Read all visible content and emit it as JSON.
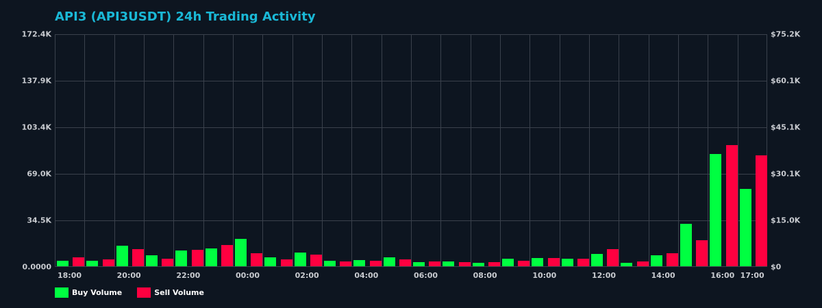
{
  "title": "API3 (API3USDT) 24h Trading Activity",
  "colors": {
    "background": "#0d1520",
    "title": "#1ab8d6",
    "grid": "#3a414c",
    "buy": "#00ff41",
    "sell": "#ff0040",
    "tick_text": "#c8cbd0"
  },
  "axes": {
    "left_ticks": [
      "172.4K",
      "137.9K",
      "103.4K",
      "69.0K",
      "34.5K",
      "0.0000"
    ],
    "right_ticks": [
      "$75.2K",
      "$60.1K",
      "$45.1K",
      "$30.1K",
      "$15.0K",
      "$0"
    ],
    "x_ticks": [
      {
        "label": "18:00",
        "index": 0
      },
      {
        "label": "20:00",
        "index": 2
      },
      {
        "label": "22:00",
        "index": 4
      },
      {
        "label": "00:00",
        "index": 6
      },
      {
        "label": "02:00",
        "index": 8
      },
      {
        "label": "04:00",
        "index": 10
      },
      {
        "label": "06:00",
        "index": 12
      },
      {
        "label": "08:00",
        "index": 14
      },
      {
        "label": "10:00",
        "index": 16
      },
      {
        "label": "12:00",
        "index": 18
      },
      {
        "label": "14:00",
        "index": 20
      },
      {
        "label": "16:00",
        "index": 22
      },
      {
        "label": "17:00",
        "index": 23
      }
    ]
  },
  "legend": {
    "buy_label": "Buy Volume",
    "sell_label": "Sell Volume"
  },
  "chart_data": {
    "type": "bar",
    "title": "API3 (API3USDT) 24h Trading Activity",
    "xlabel": "",
    "ylabel": "",
    "ylim": [
      0,
      172.4
    ],
    "y_unit": "K",
    "y2_ticks": [
      "$0",
      "$15.0K",
      "$30.1K",
      "$45.1K",
      "$60.1K",
      "$75.2K"
    ],
    "y2lim": [
      0,
      75.2
    ],
    "grid": true,
    "legend_position": "bottom-left",
    "categories": [
      "18:00",
      "19:00",
      "20:00",
      "21:00",
      "22:00",
      "23:00",
      "00:00",
      "01:00",
      "02:00",
      "03:00",
      "04:00",
      "05:00",
      "06:00",
      "07:00",
      "08:00",
      "09:00",
      "10:00",
      "11:00",
      "12:00",
      "13:00",
      "14:00",
      "15:00",
      "16:00",
      "17:00"
    ],
    "series": [
      {
        "name": "Buy Volume",
        "color": "#00ff41",
        "values": [
          3.9,
          3.9,
          15.0,
          8.0,
          11.7,
          13.2,
          20.3,
          6.6,
          10.1,
          4.2,
          4.7,
          6.7,
          3.2,
          3.7,
          2.7,
          5.7,
          6.2,
          5.7,
          9.3,
          2.7,
          8.3,
          31.6,
          83.3,
          57.4
        ]
      },
      {
        "name": "Sell Volume",
        "color": "#ff0040",
        "values": [
          6.4,
          4.9,
          12.5,
          5.4,
          12.2,
          15.7,
          9.6,
          5.1,
          8.6,
          3.7,
          4.2,
          5.2,
          3.7,
          3.2,
          3.2,
          4.2,
          6.2,
          5.7,
          12.8,
          3.7,
          9.8,
          19.4,
          89.9,
          82.3
        ]
      }
    ]
  }
}
